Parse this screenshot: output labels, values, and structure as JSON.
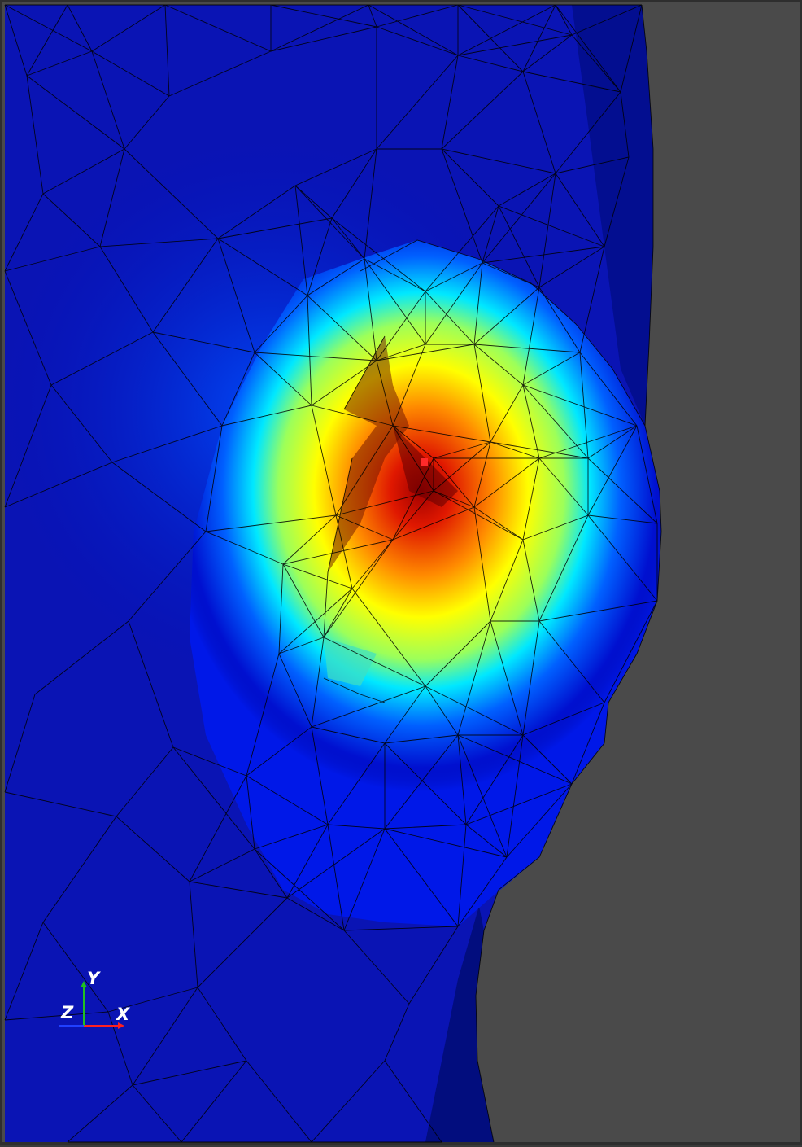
{
  "viewport": {
    "background_color": "#4a4a4a",
    "colormap": [
      "#000060",
      "#0000c8",
      "#0040ff",
      "#00d8ff",
      "#c8ff40",
      "#ffff00",
      "#ff9a00",
      "#ff3000",
      "#a00000"
    ],
    "mesh_edge_color": "#000000",
    "picked_point_color": "#ff2a2a"
  },
  "orientation_axes": {
    "x_label": "X",
    "y_label": "Y",
    "z_label": "Z",
    "x_color": "#ff2020",
    "y_color": "#20c020",
    "z_color": "#2040ff"
  }
}
